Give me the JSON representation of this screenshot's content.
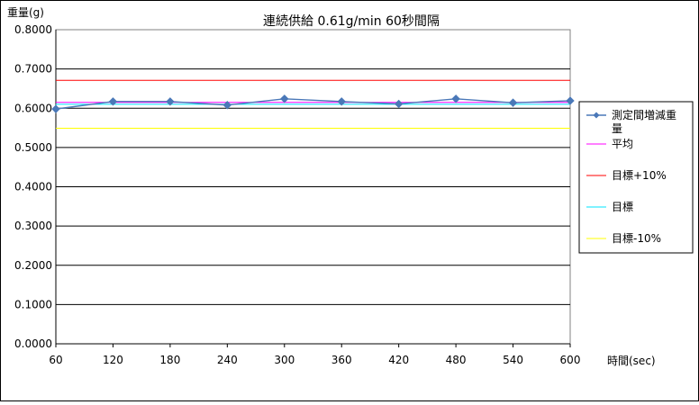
{
  "chart_data": {
    "type": "line",
    "title": "連続供給 0.61g/min 60秒間隔",
    "ylabel": "重量(g)",
    "xlabel": "時間(sec)",
    "ylim": [
      0,
      0.8
    ],
    "yticks": [
      "0.0000",
      "0.1000",
      "0.2000",
      "0.3000",
      "0.4000",
      "0.5000",
      "0.6000",
      "0.7000",
      "0.8000"
    ],
    "x": [
      60,
      120,
      180,
      240,
      300,
      360,
      420,
      480,
      540,
      600
    ],
    "grid": true,
    "legend_position": "right",
    "series": [
      {
        "name": "測定間増減重量",
        "color": "#4a78b8",
        "marker": "diamond",
        "values": [
          0.598,
          0.617,
          0.617,
          0.608,
          0.624,
          0.617,
          0.611,
          0.624,
          0.614,
          0.619
        ]
      },
      {
        "name": "平均",
        "color": "#ff00ff",
        "marker": "none",
        "values": [
          0.615,
          0.615,
          0.615,
          0.615,
          0.615,
          0.615,
          0.615,
          0.615,
          0.615,
          0.615
        ]
      },
      {
        "name": "目標+10%",
        "color": "#ff0000",
        "marker": "none",
        "values": [
          0.671,
          0.671,
          0.671,
          0.671,
          0.671,
          0.671,
          0.671,
          0.671,
          0.671,
          0.671
        ]
      },
      {
        "name": "目標",
        "color": "#00e5ff",
        "marker": "none",
        "values": [
          0.61,
          0.61,
          0.61,
          0.61,
          0.61,
          0.61,
          0.61,
          0.61,
          0.61,
          0.61
        ]
      },
      {
        "name": "目標-10%",
        "color": "#ffff00",
        "marker": "none",
        "values": [
          0.549,
          0.549,
          0.549,
          0.549,
          0.549,
          0.549,
          0.549,
          0.549,
          0.549,
          0.549
        ]
      }
    ]
  }
}
